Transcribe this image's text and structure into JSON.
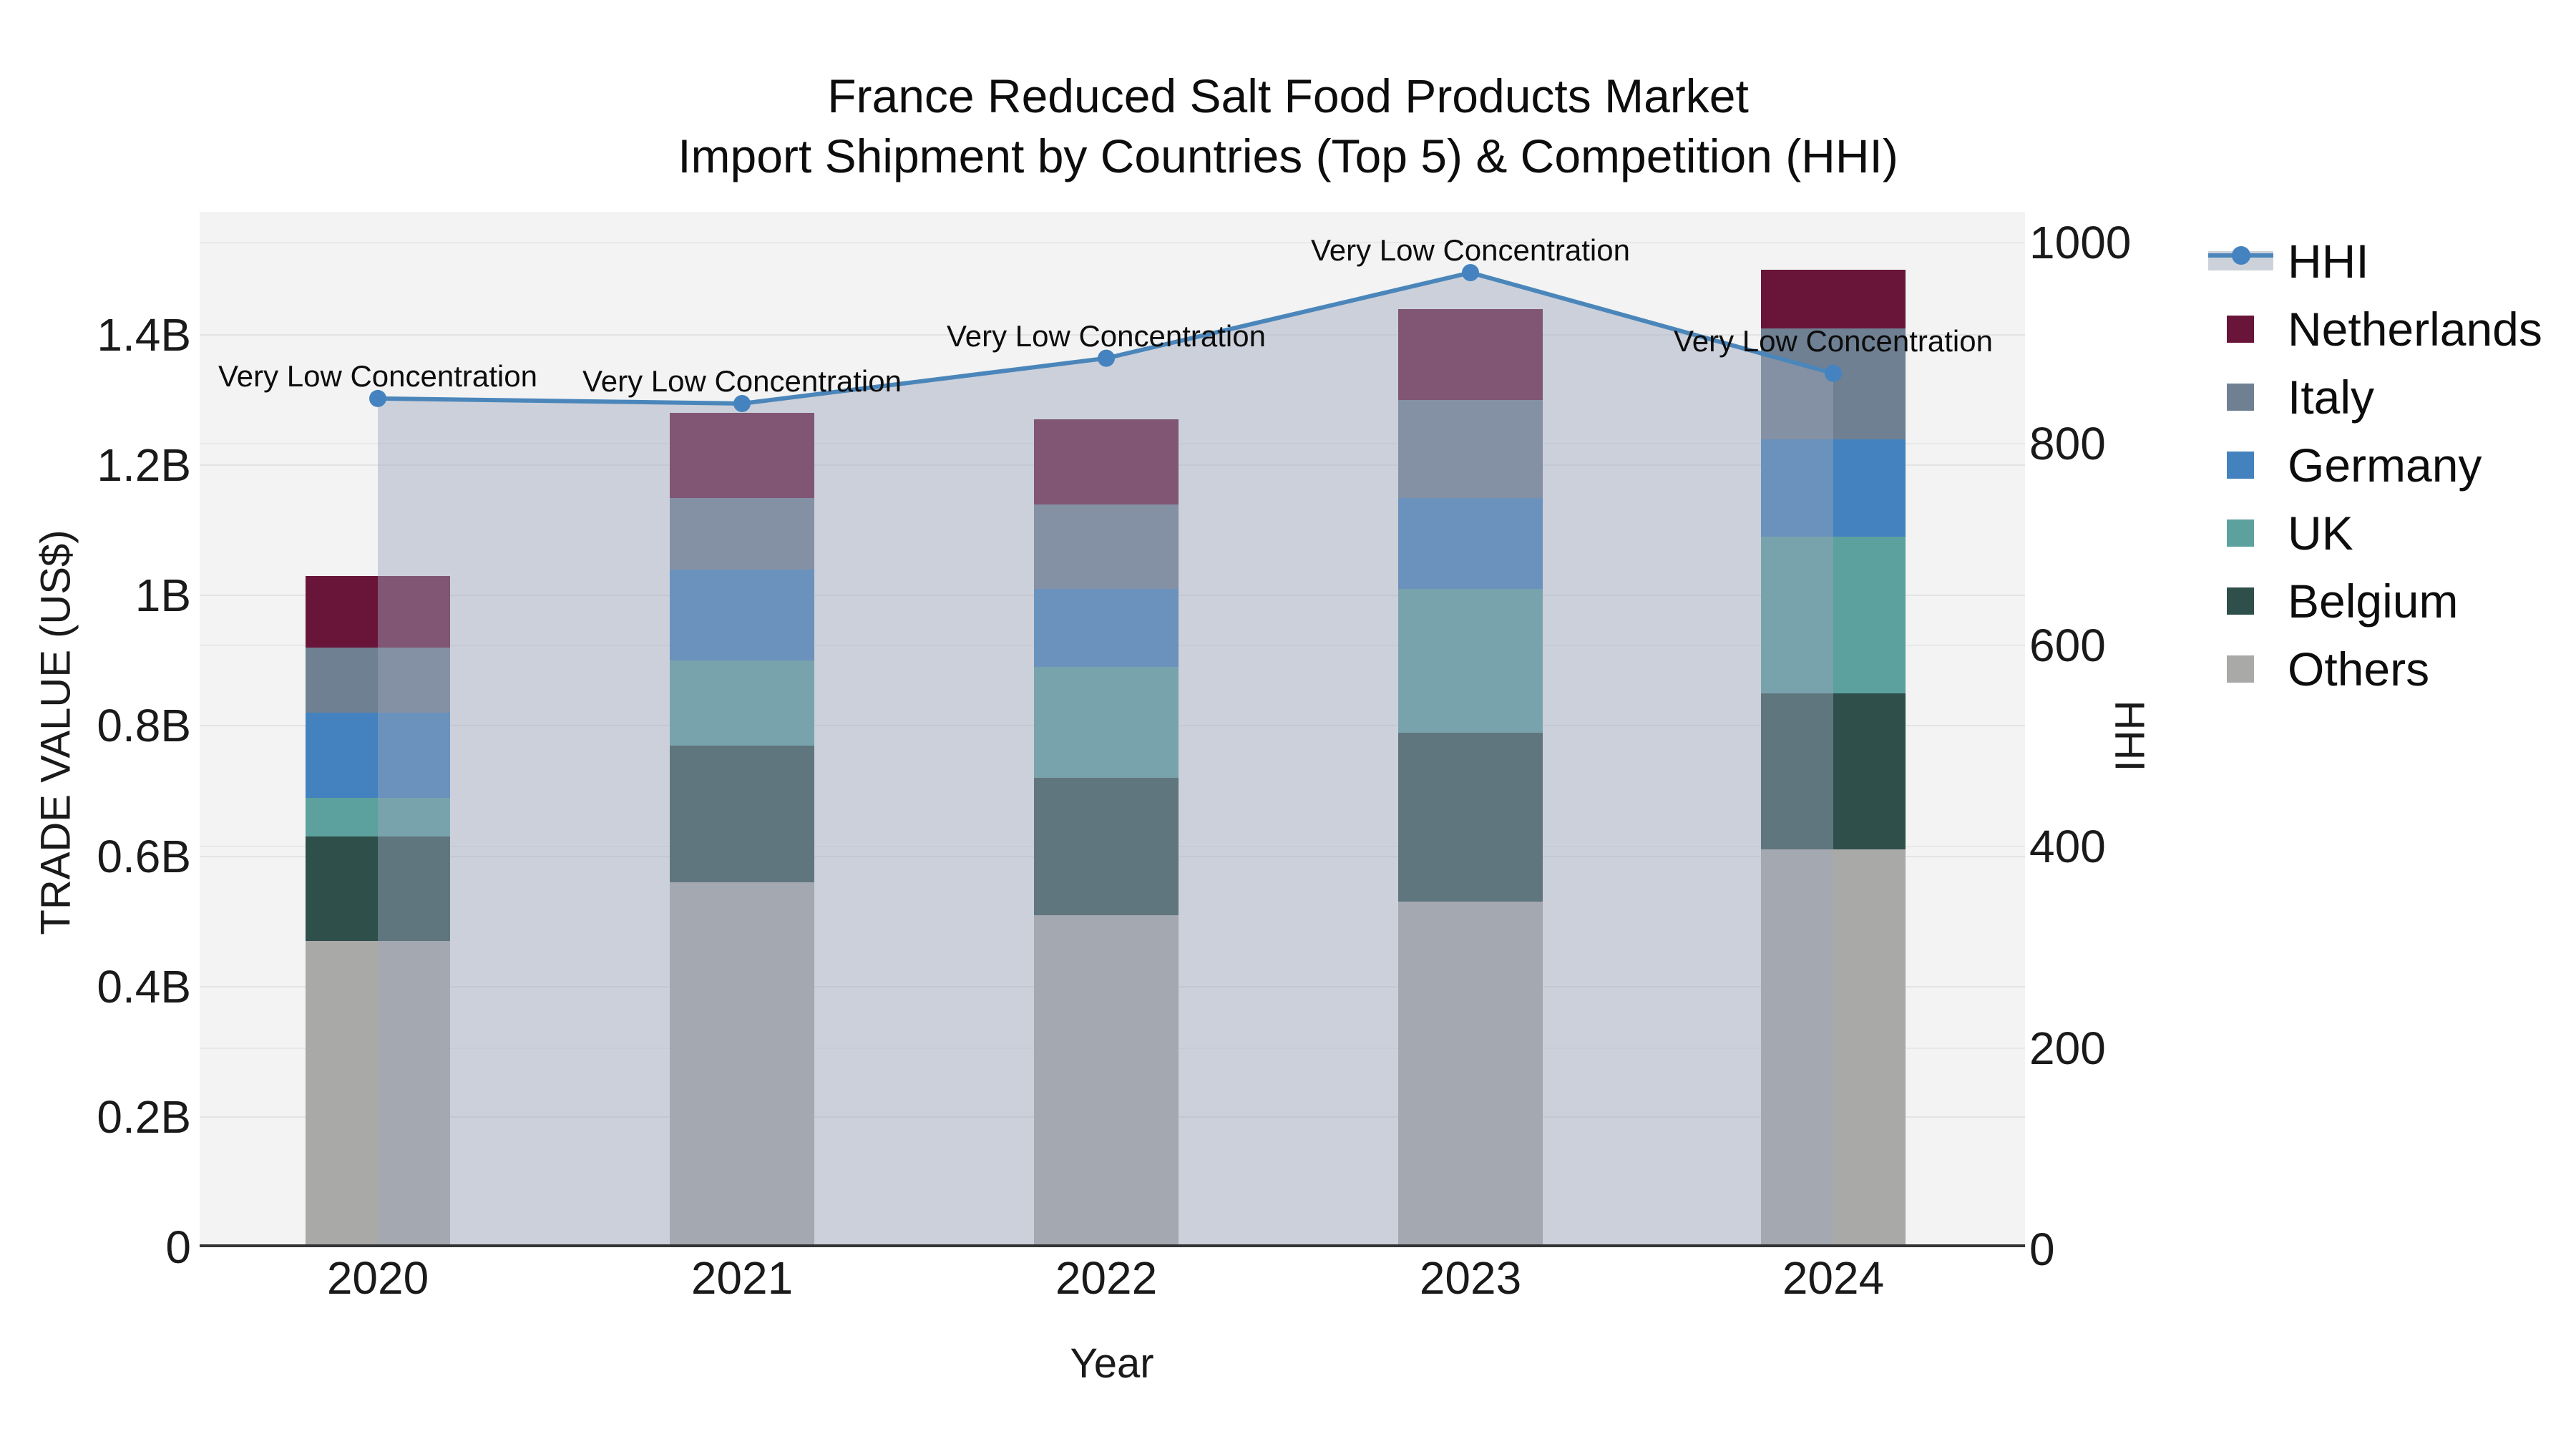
{
  "title": {
    "line1": "France Reduced Salt Food Products Market",
    "line2": "Import Shipment by Countries (Top 5) & Competition (HHI)"
  },
  "axes": {
    "x": {
      "title": "Year",
      "categories": [
        "2020",
        "2021",
        "2022",
        "2023",
        "2024"
      ]
    },
    "y_left": {
      "title": "TRADE VALUE (US$)",
      "ticks": [
        {
          "label": "0",
          "value": 0
        },
        {
          "label": "0.2B",
          "value": 0.2
        },
        {
          "label": "0.4B",
          "value": 0.4
        },
        {
          "label": "0.6B",
          "value": 0.6
        },
        {
          "label": "0.8B",
          "value": 0.8
        },
        {
          "label": "1B",
          "value": 1.0
        },
        {
          "label": "1.2B",
          "value": 1.2
        },
        {
          "label": "1.4B",
          "value": 1.4
        }
      ]
    },
    "y_right": {
      "title": "HHI",
      "ticks": [
        {
          "label": "0",
          "value": 0
        },
        {
          "label": "200",
          "value": 200
        },
        {
          "label": "400",
          "value": 400
        },
        {
          "label": "600",
          "value": 600
        },
        {
          "label": "800",
          "value": 800
        },
        {
          "label": "1000",
          "value": 1000
        }
      ]
    }
  },
  "legend": {
    "items": [
      {
        "label": "HHI",
        "type": "line",
        "color": "#4b86bb"
      },
      {
        "label": "Netherlands",
        "type": "swatch",
        "color": "#691539"
      },
      {
        "label": "Italy",
        "type": "swatch",
        "color": "#6f8093"
      },
      {
        "label": "Germany",
        "type": "swatch",
        "color": "#4382be"
      },
      {
        "label": "UK",
        "type": "swatch",
        "color": "#5ca19e"
      },
      {
        "label": "Belgium",
        "type": "swatch",
        "color": "#2f4f4b"
      },
      {
        "label": "Others",
        "type": "swatch",
        "color": "#a9a9a7"
      }
    ]
  },
  "chart_data": {
    "type": "bar+line",
    "title": "France Reduced Salt Food Products Market — Import Shipment by Countries (Top 5) & Competition (HHI)",
    "categories": [
      "2020",
      "2021",
      "2022",
      "2023",
      "2024"
    ],
    "xlabel": "Year",
    "ylabel": "TRADE VALUE (US$)",
    "y2label": "HHI",
    "ylim": [
      0,
      1.4
    ],
    "y2lim": [
      0,
      1000
    ],
    "units": "billions US$",
    "grid": true,
    "legend_position": "right",
    "bar_series": [
      {
        "name": "Others",
        "color": "#a9a9a7",
        "values": [
          0.47,
          0.56,
          0.51,
          0.53,
          0.61
        ]
      },
      {
        "name": "Belgium",
        "color": "#2f4f4b",
        "values": [
          0.16,
          0.21,
          0.21,
          0.26,
          0.24
        ]
      },
      {
        "name": "UK",
        "color": "#5ca19e",
        "values": [
          0.06,
          0.13,
          0.17,
          0.22,
          0.24
        ]
      },
      {
        "name": "Germany",
        "color": "#4382be",
        "values": [
          0.13,
          0.14,
          0.12,
          0.14,
          0.15
        ]
      },
      {
        "name": "Italy",
        "color": "#6f8093",
        "values": [
          0.1,
          0.11,
          0.13,
          0.15,
          0.17
        ]
      },
      {
        "name": "Netherlands",
        "color": "#691539",
        "values": [
          0.11,
          0.13,
          0.13,
          0.14,
          0.09
        ]
      }
    ],
    "bar_totals": [
      1.03,
      1.28,
      1.27,
      1.44,
      1.5
    ],
    "line_series": {
      "name": "HHI",
      "color": "#4b86bb",
      "marker_color": "#4483c0",
      "fill_color": "rgba(158,167,189,0.45)",
      "values": [
        845,
        840,
        885,
        970,
        870
      ]
    },
    "annotations": [
      "Very Low Concentration",
      "Very Low Concentration",
      "Very Low Concentration",
      "Very Low Concentration",
      "Very Low Concentration"
    ]
  }
}
